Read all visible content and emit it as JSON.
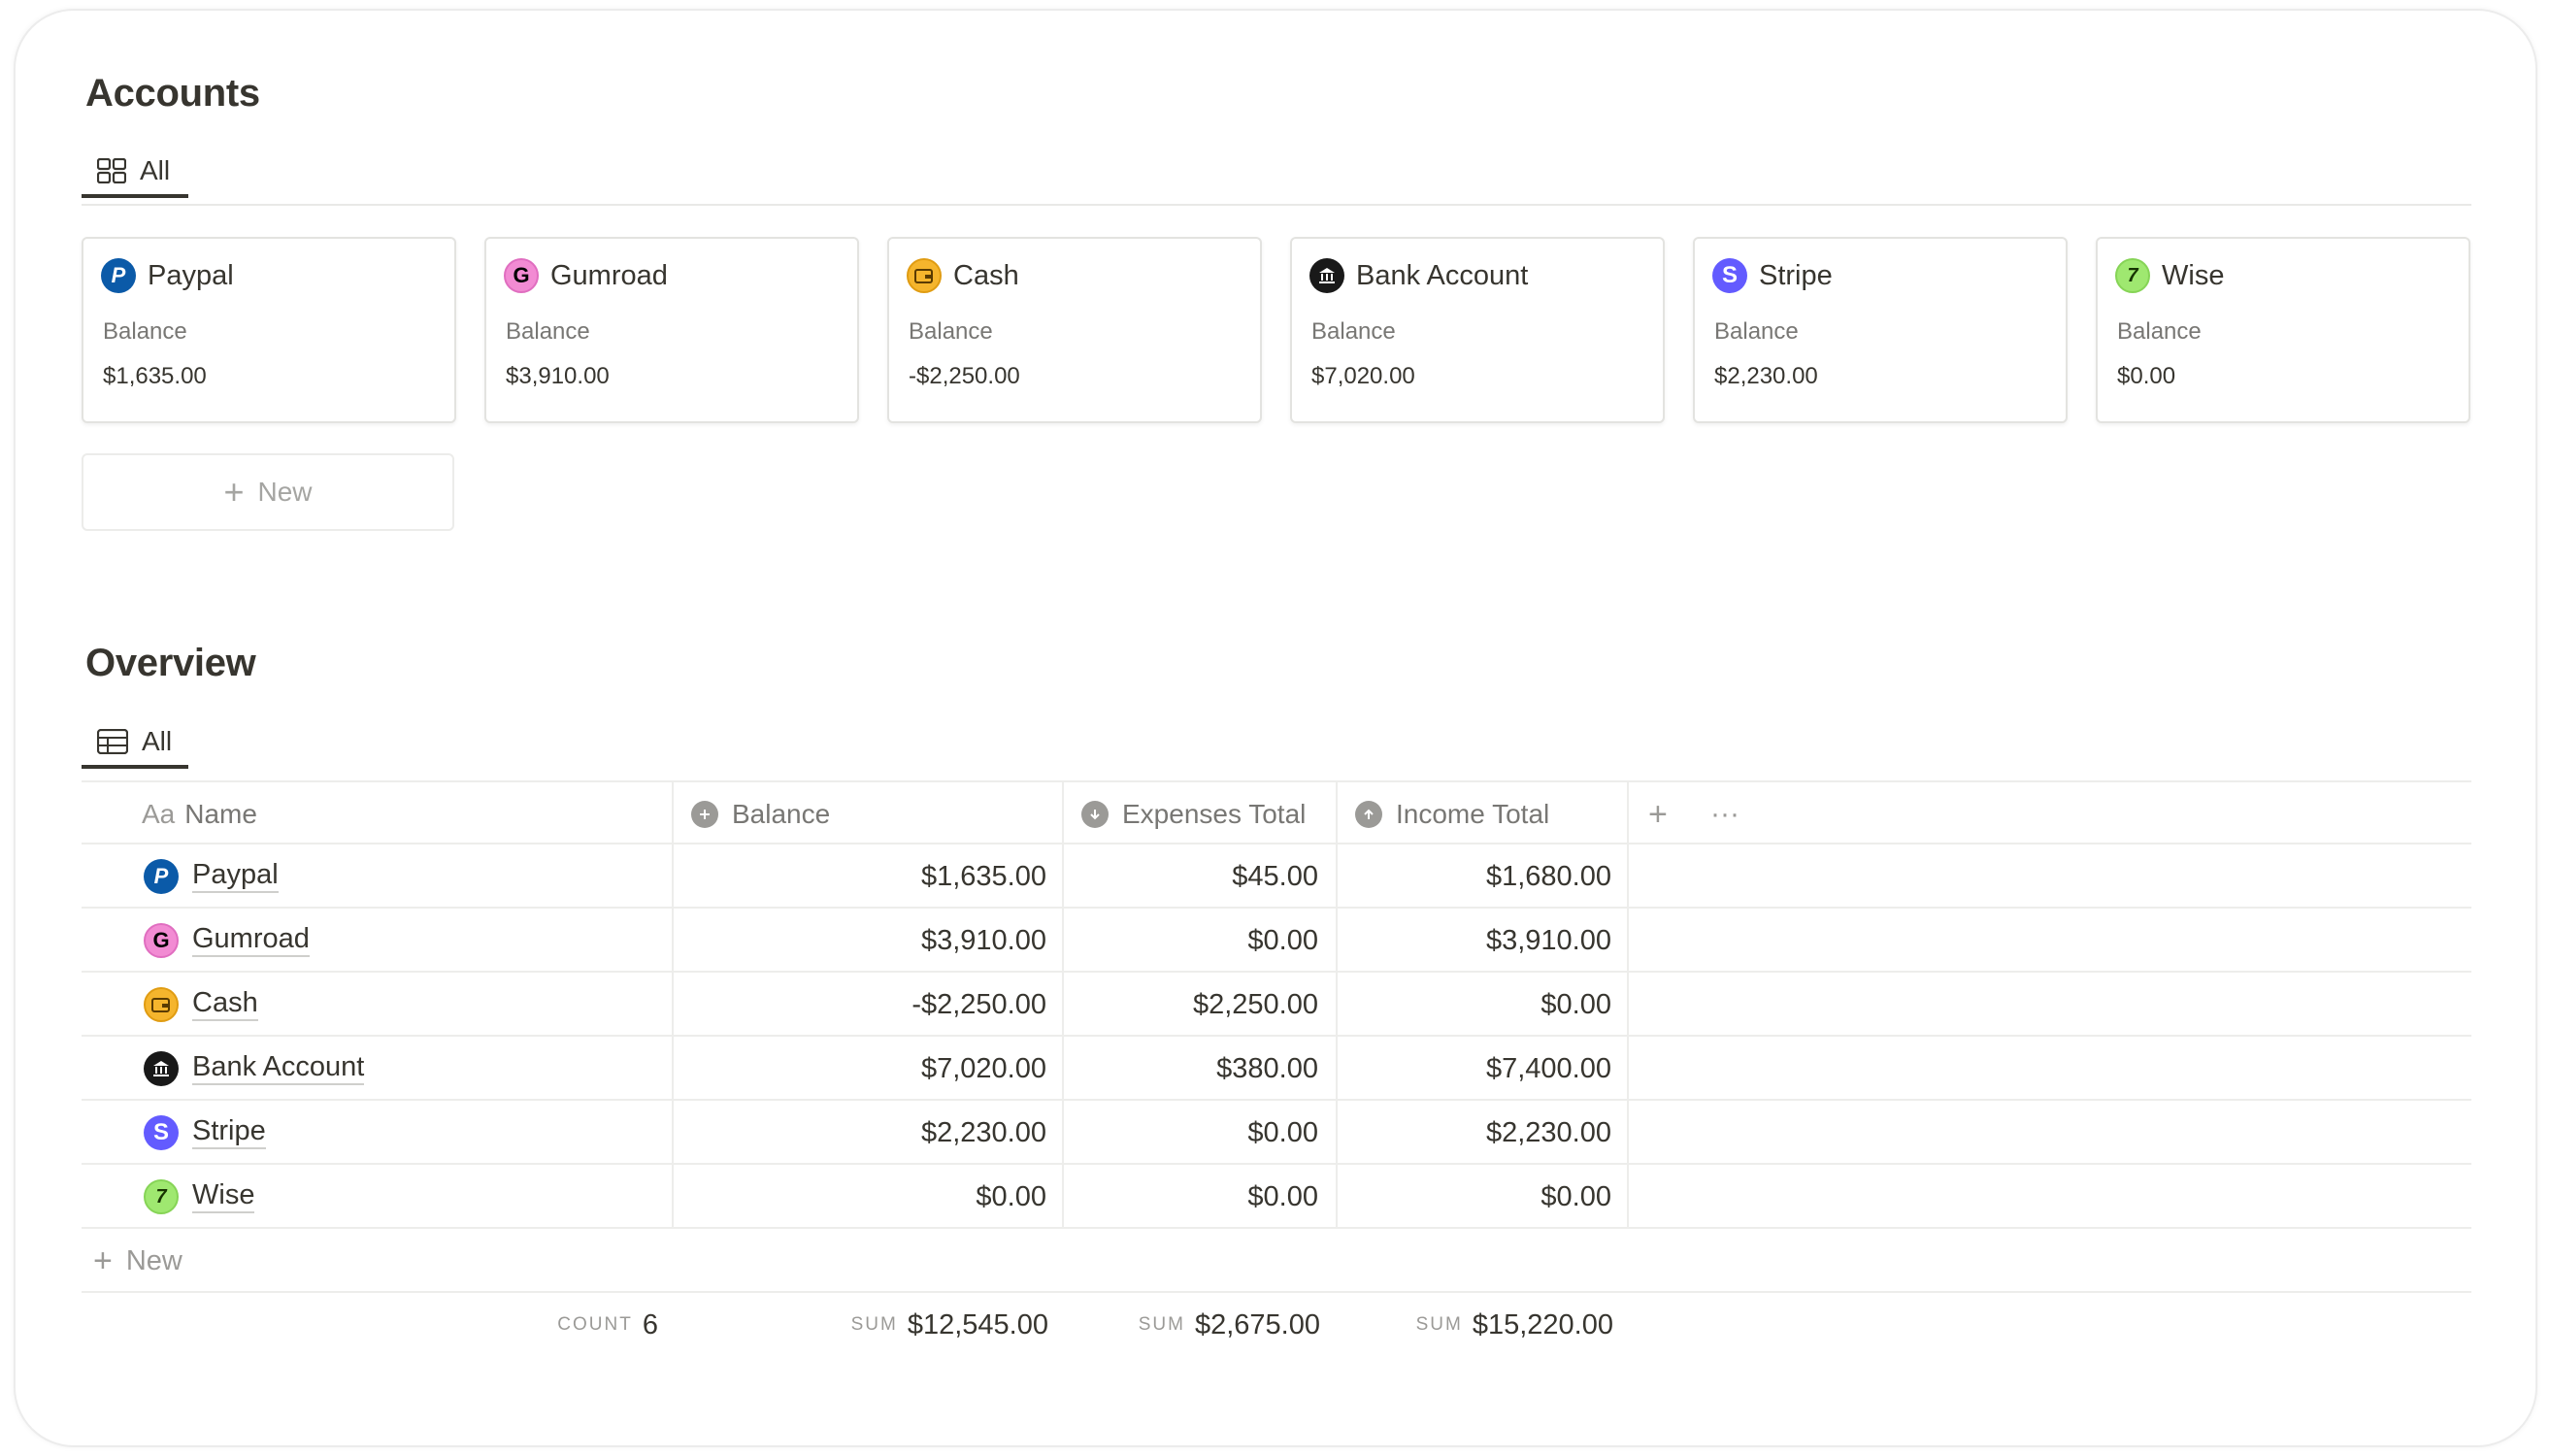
{
  "accounts": {
    "title": "Accounts",
    "tab_label": "All",
    "cards": [
      {
        "name": "Paypal",
        "label": "Balance",
        "value": "$1,635.00",
        "icon": "paypal-icon"
      },
      {
        "name": "Gumroad",
        "label": "Balance",
        "value": "$3,910.00",
        "icon": "gumroad-icon"
      },
      {
        "name": "Cash",
        "label": "Balance",
        "value": "-$2,250.00",
        "icon": "wallet-icon"
      },
      {
        "name": "Bank Account",
        "label": "Balance",
        "value": "$7,020.00",
        "icon": "bank-icon"
      },
      {
        "name": "Stripe",
        "label": "Balance",
        "value": "$2,230.00",
        "icon": "stripe-icon"
      },
      {
        "name": "Wise",
        "label": "Balance",
        "value": "$0.00",
        "icon": "wise-icon"
      }
    ],
    "new_label": "New"
  },
  "overview": {
    "title": "Overview",
    "tab_label": "All",
    "columns": {
      "name_prefix": "Aa",
      "name": "Name",
      "balance": "Balance",
      "expenses": "Expenses Total",
      "income": "Income Total"
    },
    "rows": [
      {
        "name": "Paypal",
        "balance": "$1,635.00",
        "expenses": "$45.00",
        "income": "$1,680.00"
      },
      {
        "name": "Gumroad",
        "balance": "$3,910.00",
        "expenses": "$0.00",
        "income": "$3,910.00"
      },
      {
        "name": "Cash",
        "balance": "-$2,250.00",
        "expenses": "$2,250.00",
        "income": "$0.00"
      },
      {
        "name": "Bank Account",
        "balance": "$7,020.00",
        "expenses": "$380.00",
        "income": "$7,400.00"
      },
      {
        "name": "Stripe",
        "balance": "$2,230.00",
        "expenses": "$0.00",
        "income": "$2,230.00"
      },
      {
        "name": "Wise",
        "balance": "$0.00",
        "expenses": "$0.00",
        "income": "$0.00"
      }
    ],
    "new_label": "New",
    "footer": {
      "count_label": "COUNT",
      "count_value": "6",
      "sum_label": "SUM",
      "balance_sum": "$12,545.00",
      "expenses_sum": "$2,675.00",
      "income_sum": "$15,220.00"
    }
  },
  "colors": {
    "paypal": "#0b5aa8",
    "gumroad": "#f28bd3",
    "cash": "#f5b52d",
    "bank": "#191919",
    "stripe": "#635bff",
    "wise": "#9fe870"
  }
}
